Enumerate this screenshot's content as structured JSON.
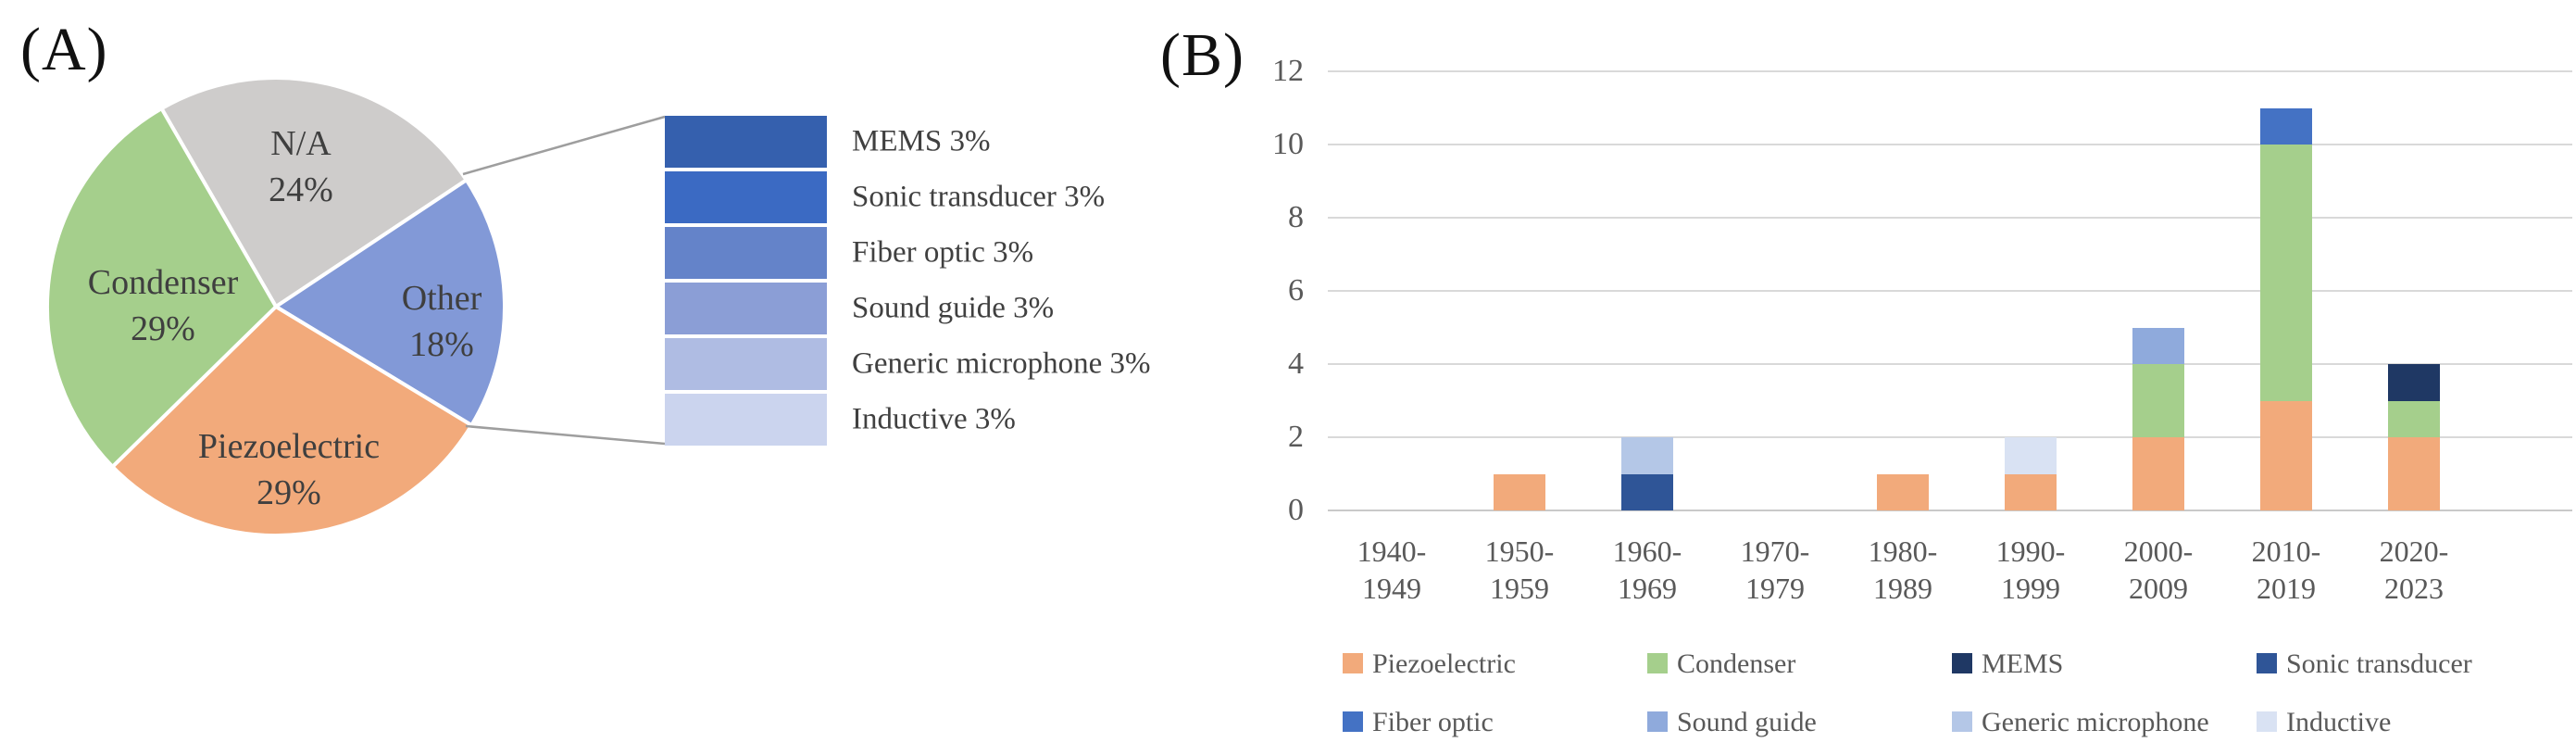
{
  "panel_a": {
    "label": "(A)"
  },
  "panel_b": {
    "label": "(B)"
  },
  "chart_data": [
    {
      "type": "pie",
      "panel": "A",
      "start_angle_deg": -30,
      "slice_border_color": "#FFFFFF",
      "slices": [
        {
          "label": "N/A",
          "value": 24,
          "pct": "24%",
          "color": "#CECCCB"
        },
        {
          "label": "Other",
          "value": 18,
          "pct": "18%",
          "color": "#8299D7"
        },
        {
          "label": "Piezoelectric",
          "value": 29,
          "pct": "29%",
          "color": "#F2AA7B"
        },
        {
          "label": "Condenser",
          "value": 29,
          "pct": "29%",
          "color": "#A5CF8C"
        }
      ],
      "breakout_of": "Other",
      "breakout_items": [
        {
          "label": "MEMS 3%",
          "color": "#3560AE"
        },
        {
          "label": "Sonic transducer 3%",
          "color": "#3B6AC3"
        },
        {
          "label": "Fiber optic 3%",
          "color": "#6483C9"
        },
        {
          "label": "Sound guide 3%",
          "color": "#8B9ED6"
        },
        {
          "label": "Generic microphone 3%",
          "color": "#AFBCE3"
        },
        {
          "label": "Inductive 3%",
          "color": "#CBD4EE"
        }
      ]
    },
    {
      "type": "bar",
      "stacked": true,
      "panel": "B",
      "categories": [
        {
          "line1": "1940-",
          "line2": "1949"
        },
        {
          "line1": "1950-",
          "line2": "1959"
        },
        {
          "line1": "1960-",
          "line2": "1969"
        },
        {
          "line1": "1970-",
          "line2": "1979"
        },
        {
          "line1": "1980-",
          "line2": "1989"
        },
        {
          "line1": "1990-",
          "line2": "1999"
        },
        {
          "line1": "2000-",
          "line2": "2009"
        },
        {
          "line1": "2010-",
          "line2": "2019"
        },
        {
          "line1": "2020-",
          "line2": "2023"
        }
      ],
      "series": [
        {
          "name": "Piezoelectric",
          "color": "#F2AA7B",
          "values": [
            0,
            1,
            0,
            0,
            1,
            1,
            2,
            3,
            2
          ]
        },
        {
          "name": "Condenser",
          "color": "#A5CF8C",
          "values": [
            0,
            0,
            0,
            0,
            0,
            0,
            2,
            7,
            1
          ]
        },
        {
          "name": "MEMS",
          "color": "#1F3864",
          "values": [
            0,
            0,
            0,
            0,
            0,
            0,
            0,
            0,
            1
          ]
        },
        {
          "name": "Sonic transducer",
          "color": "#2F5597",
          "values": [
            0,
            0,
            1,
            0,
            0,
            0,
            0,
            0,
            0
          ]
        },
        {
          "name": "Fiber optic",
          "color": "#4472C4",
          "values": [
            0,
            0,
            0,
            0,
            0,
            0,
            0,
            1,
            0
          ]
        },
        {
          "name": "Sound guide",
          "color": "#8FAADC",
          "values": [
            0,
            0,
            0,
            0,
            0,
            0,
            1,
            0,
            0
          ]
        },
        {
          "name": "Generic microphone",
          "color": "#B4C7E7",
          "values": [
            0,
            0,
            1,
            0,
            0,
            0,
            0,
            0,
            0
          ]
        },
        {
          "name": "Inductive",
          "color": "#D9E2F3",
          "values": [
            0,
            0,
            0,
            0,
            0,
            1,
            0,
            0,
            0
          ]
        }
      ],
      "y_ticks": [
        0,
        2,
        4,
        6,
        8,
        10,
        12
      ],
      "ylim": [
        0,
        12
      ],
      "grid": true,
      "legend_position": "bottom",
      "legend_rows": [
        [
          "Piezoelectric",
          "Condenser",
          "MEMS",
          "Sonic transducer"
        ],
        [
          "Fiber optic",
          "Sound guide",
          "Generic microphone",
          "Inductive"
        ]
      ],
      "tick_color": "#595959",
      "grid_color": "#D9D9D9"
    }
  ]
}
